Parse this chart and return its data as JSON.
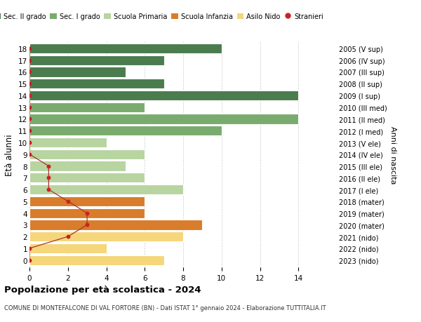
{
  "ages": [
    18,
    17,
    16,
    15,
    14,
    13,
    12,
    11,
    10,
    9,
    8,
    7,
    6,
    5,
    4,
    3,
    2,
    1,
    0
  ],
  "years": [
    "2005 (V sup)",
    "2006 (IV sup)",
    "2007 (III sup)",
    "2008 (II sup)",
    "2009 (I sup)",
    "2010 (III med)",
    "2011 (II med)",
    "2012 (I med)",
    "2013 (V ele)",
    "2014 (IV ele)",
    "2015 (III ele)",
    "2016 (II ele)",
    "2017 (I ele)",
    "2018 (mater)",
    "2019 (mater)",
    "2020 (mater)",
    "2021 (nido)",
    "2022 (nido)",
    "2023 (nido)"
  ],
  "bar_values": [
    10,
    7,
    5,
    7,
    14,
    6,
    14,
    10,
    4,
    6,
    5,
    6,
    8,
    6,
    6,
    9,
    8,
    4,
    7
  ],
  "bar_colors": [
    "#4a7c4e",
    "#4a7c4e",
    "#4a7c4e",
    "#4a7c4e",
    "#4a7c4e",
    "#7aab6e",
    "#7aab6e",
    "#7aab6e",
    "#b8d4a0",
    "#b8d4a0",
    "#b8d4a0",
    "#b8d4a0",
    "#b8d4a0",
    "#d97c2b",
    "#d97c2b",
    "#d97c2b",
    "#f5d67a",
    "#f5d67a",
    "#f5d67a"
  ],
  "stranieri": [
    0,
    0,
    0,
    0,
    0,
    0,
    0,
    0,
    0,
    0,
    1,
    1,
    1,
    2,
    3,
    3,
    2,
    0,
    0
  ],
  "title": "Popolazione per età scolastica - 2024",
  "subtitle": "COMUNE DI MONTEFALCONE DI VAL FORTORE (BN) - Dati ISTAT 1° gennaio 2024 - Elaborazione TUTTITALIA.IT",
  "ylabel": "Età alunni",
  "ylabel2": "Anni di nascita",
  "xlim": [
    0,
    16
  ],
  "xticks": [
    0,
    2,
    4,
    6,
    8,
    10,
    12,
    14
  ],
  "legend_labels": [
    "Sec. II grado",
    "Sec. I grado",
    "Scuola Primaria",
    "Scuola Infanzia",
    "Asilo Nido",
    "Stranieri"
  ],
  "legend_colors": [
    "#4a7c4e",
    "#7aab6e",
    "#b8d4a0",
    "#d97c2b",
    "#f5d67a",
    "#cc2222"
  ],
  "bar_height": 0.85,
  "bg_color": "#ffffff",
  "grid_color": "#cccccc",
  "stranieri_line_color": "#aa3333",
  "stranieri_dot_color": "#cc2222"
}
